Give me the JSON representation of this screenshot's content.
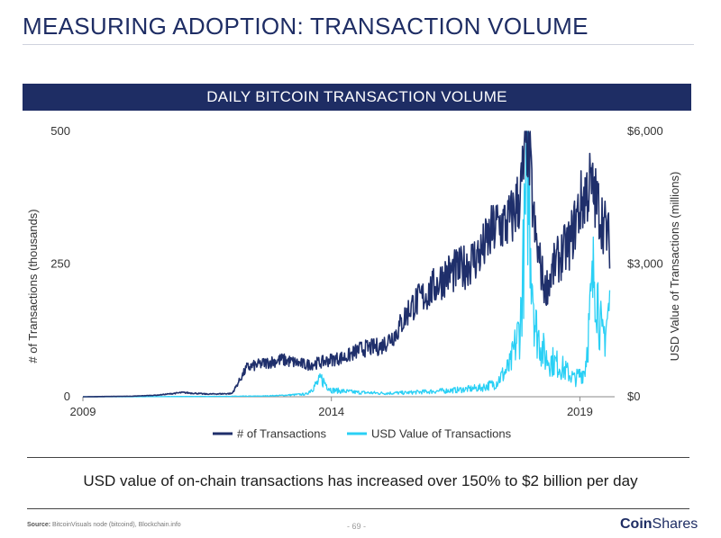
{
  "page": {
    "title": "MEASURING ADOPTION: TRANSACTION VOLUME",
    "caption": "USD value of on-chain transactions has increased over 150% to $2 billion per day",
    "source_label": "Source:",
    "source_text": "BitcoinVisuals node (bitcoind), Blockchain.info",
    "page_number": "- 69 -",
    "logo_bold": "Coin",
    "logo_light": "Shares"
  },
  "colors": {
    "navy": "#1e2d64",
    "series_transactions": "#1f2f6b",
    "series_usd": "#2ad0f5"
  },
  "chart_data": {
    "type": "line",
    "title": "DAILY BITCOIN TRANSACTION VOLUME",
    "xlabel": "",
    "ylabel_left": "# of Transactions (thousands)",
    "ylabel_right": "USD Value of Transactions (millions)",
    "xlim": [
      2009.0,
      2019.7
    ],
    "ylim_left": [
      0,
      500
    ],
    "ylim_right": [
      0,
      6000
    ],
    "x_ticks": [
      "2009",
      "2014",
      "2019"
    ],
    "y_ticks_left": [
      "0",
      "250",
      "500"
    ],
    "y_ticks_right": [
      "$0",
      "$3,000",
      "$6,000"
    ],
    "grid": false,
    "legend": "bottom-center",
    "series": [
      {
        "name": "# of Transactions",
        "axis": "left",
        "x": [
          2009.0,
          2010.0,
          2010.5,
          2011.0,
          2011.5,
          2012.0,
          2012.3,
          2012.6,
          2013.0,
          2013.5,
          2013.8,
          2014.0,
          2014.3,
          2014.6,
          2015.0,
          2015.3,
          2015.6,
          2016.0,
          2016.3,
          2016.6,
          2017.0,
          2017.3,
          2017.6,
          2017.8,
          2017.95,
          2018.1,
          2018.3,
          2018.5,
          2018.8,
          2019.0,
          2019.2,
          2019.4,
          2019.6
        ],
        "y": [
          0,
          1,
          3,
          8,
          5,
          6,
          55,
          62,
          70,
          60,
          65,
          70,
          75,
          90,
          95,
          120,
          170,
          200,
          230,
          240,
          270,
          320,
          330,
          380,
          490,
          300,
          200,
          250,
          290,
          360,
          400,
          350,
          290
        ]
      },
      {
        "name": "USD Value of Transactions",
        "axis": "right",
        "x": [
          2009.0,
          2010.0,
          2011.0,
          2012.0,
          2012.6,
          2013.0,
          2013.5,
          2013.8,
          2014.0,
          2014.5,
          2015.0,
          2015.5,
          2016.0,
          2016.5,
          2017.0,
          2017.3,
          2017.6,
          2017.8,
          2017.95,
          2018.1,
          2018.3,
          2018.6,
          2018.9,
          2019.1,
          2019.3,
          2019.45,
          2019.6
        ],
        "y": [
          0,
          0,
          5,
          10,
          15,
          30,
          60,
          400,
          150,
          100,
          80,
          90,
          120,
          150,
          200,
          300,
          700,
          1600,
          5000,
          1600,
          900,
          700,
          400,
          600,
          3000,
          1200,
          2000
        ]
      }
    ]
  }
}
